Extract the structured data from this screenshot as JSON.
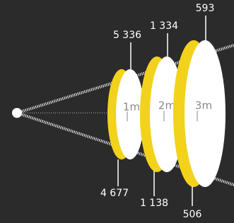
{
  "rings": [
    {
      "distance": "1m",
      "top_label": "5 336",
      "bottom_label": "4 677"
    },
    {
      "distance": "2m",
      "top_label": "1 334",
      "bottom_label": "1 138"
    },
    {
      "distance": "3m",
      "top_label": "593",
      "bottom_label": "506"
    }
  ]
}
